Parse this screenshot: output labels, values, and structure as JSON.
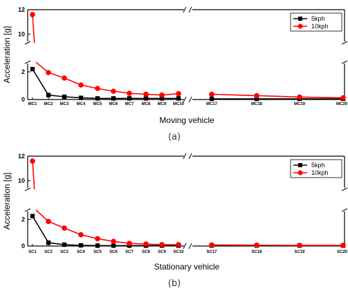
{
  "chart_data": [
    {
      "type": "line",
      "caption": "(a)",
      "xlabel": "Moving vehicle",
      "ylabel": "Acceleration [g]",
      "categories": [
        "MC1",
        "MC2",
        "MC3",
        "MC4",
        "MC5",
        "MC6",
        "MC7",
        "MC8",
        "MC9",
        "MC10",
        "MC17",
        "MC18",
        "MC19",
        "MC20"
      ],
      "ylim": [
        0,
        12
      ],
      "y_axis_break": [
        2.6,
        9.4
      ],
      "x_axis_break_between": [
        "MC10",
        "MC17"
      ],
      "y_ticks": [
        "0",
        "2",
        "10",
        "12"
      ],
      "legend": {
        "position": "top-right"
      },
      "series": [
        {
          "name": "5kph",
          "color": "#000000",
          "marker": "square",
          "values": [
            2.2,
            0.32,
            0.2,
            0.12,
            0.08,
            0.08,
            0.08,
            0.08,
            0.08,
            0.08,
            0.05,
            0.05,
            0.05,
            0.05
          ]
        },
        {
          "name": "10kph",
          "color": "#ff0000",
          "marker": "circle",
          "values": [
            11.6,
            1.95,
            1.55,
            1.05,
            0.8,
            0.6,
            0.45,
            0.38,
            0.32,
            0.42,
            0.38,
            0.28,
            0.18,
            0.12
          ]
        }
      ]
    },
    {
      "type": "line",
      "caption": "(b)",
      "xlabel": "Stationary vehicle",
      "ylabel": "Acceleration [g]",
      "categories": [
        "SC1",
        "SC2",
        "SC3",
        "SC4",
        "SC5",
        "SC6",
        "SC7",
        "SC8",
        "SC9",
        "SC10",
        "SC17",
        "SC18",
        "SC19",
        "SC20"
      ],
      "ylim": [
        0,
        12
      ],
      "y_axis_break": [
        2.6,
        9.4
      ],
      "x_axis_break_between": [
        "SC10",
        "SC17"
      ],
      "y_ticks": [
        "0",
        "2",
        "10",
        "12"
      ],
      "legend": {
        "position": "top-right"
      },
      "series": [
        {
          "name": "5kph",
          "color": "#000000",
          "marker": "square",
          "values": [
            2.25,
            0.25,
            0.1,
            0.05,
            0.03,
            0.03,
            0.03,
            0.03,
            0.03,
            0.03,
            0.03,
            0.03,
            0.03,
            0.03
          ]
        },
        {
          "name": "10kph",
          "color": "#ff0000",
          "marker": "circle",
          "values": [
            11.6,
            1.85,
            1.35,
            0.85,
            0.55,
            0.35,
            0.2,
            0.15,
            0.1,
            0.1,
            0.08,
            0.06,
            0.05,
            0.05
          ]
        }
      ]
    }
  ]
}
